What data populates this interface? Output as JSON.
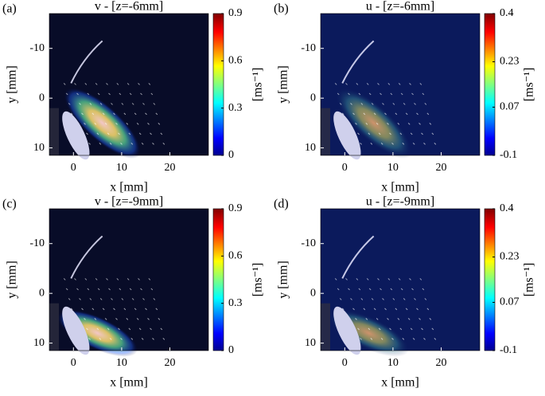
{
  "chart_data": [
    {
      "type": "heatmap",
      "panel_label": "(a)",
      "title": "v - [z=-6mm]",
      "x_label": "x [mm]",
      "y_label": "y [mm]",
      "colorbar_label": "[ms⁻¹]",
      "xlim": [
        -5,
        28
      ],
      "xticks": [
        0,
        10,
        20
      ],
      "ylim": [
        -17,
        11.5
      ],
      "yticks": [
        -10,
        0,
        10
      ],
      "y_inverted": true,
      "clim": [
        0,
        0.9
      ],
      "cticks": [
        0,
        0.3,
        0.6,
        0.9
      ],
      "colormap": "jet"
    },
    {
      "type": "heatmap",
      "panel_label": "(b)",
      "title": "u - [z=-6mm]",
      "x_label": "x [mm]",
      "y_label": "y [mm]",
      "colorbar_label": "[ms⁻¹]",
      "xlim": [
        -5,
        28
      ],
      "xticks": [
        0,
        10,
        20
      ],
      "ylim": [
        -17,
        11.5
      ],
      "yticks": [
        -10,
        0,
        10
      ],
      "y_inverted": true,
      "clim": [
        -0.1,
        0.4
      ],
      "cticks": [
        -0.1,
        0.07,
        0.23,
        0.4
      ],
      "colormap": "jet"
    },
    {
      "type": "heatmap",
      "panel_label": "(c)",
      "title": "v - [z=-9mm]",
      "x_label": "x [mm]",
      "y_label": "y [mm]",
      "colorbar_label": "[ms⁻¹]",
      "xlim": [
        -5,
        28
      ],
      "xticks": [
        0,
        10,
        20
      ],
      "ylim": [
        -17,
        11.5
      ],
      "yticks": [
        -10,
        0,
        10
      ],
      "y_inverted": true,
      "clim": [
        0,
        0.9
      ],
      "cticks": [
        0,
        0.3,
        0.6,
        0.9
      ],
      "colormap": "jet"
    },
    {
      "type": "heatmap",
      "panel_label": "(d)",
      "title": "u - [z=-9mm]",
      "x_label": "x [mm]",
      "y_label": "y [mm]",
      "colorbar_label": "[ms⁻¹]",
      "xlim": [
        -5,
        28
      ],
      "xticks": [
        0,
        10,
        20
      ],
      "ylim": [
        -17,
        11.5
      ],
      "yticks": [
        -10,
        0,
        10
      ],
      "y_inverted": true,
      "clim": [
        -0.1,
        0.4
      ],
      "cticks": [
        -0.1,
        0.07,
        0.23,
        0.4
      ],
      "colormap": "jet"
    }
  ]
}
